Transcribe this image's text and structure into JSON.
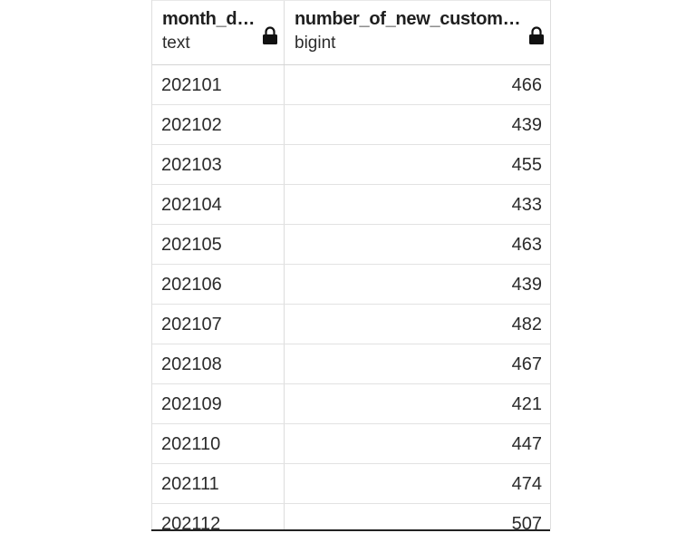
{
  "columns": [
    {
      "name": "month_date_",
      "type": "text",
      "icon": "lock-icon"
    },
    {
      "name": "number_of_new_customers_",
      "type": "bigint",
      "icon": "lock-icon"
    }
  ],
  "rows": [
    {
      "month": "202101",
      "count": "466"
    },
    {
      "month": "202102",
      "count": "439"
    },
    {
      "month": "202103",
      "count": "455"
    },
    {
      "month": "202104",
      "count": "433"
    },
    {
      "month": "202105",
      "count": "463"
    },
    {
      "month": "202106",
      "count": "439"
    },
    {
      "month": "202107",
      "count": "482"
    },
    {
      "month": "202108",
      "count": "467"
    },
    {
      "month": "202109",
      "count": "421"
    },
    {
      "month": "202110",
      "count": "447"
    },
    {
      "month": "202111",
      "count": "474"
    },
    {
      "month": "202112",
      "count": "507"
    }
  ]
}
